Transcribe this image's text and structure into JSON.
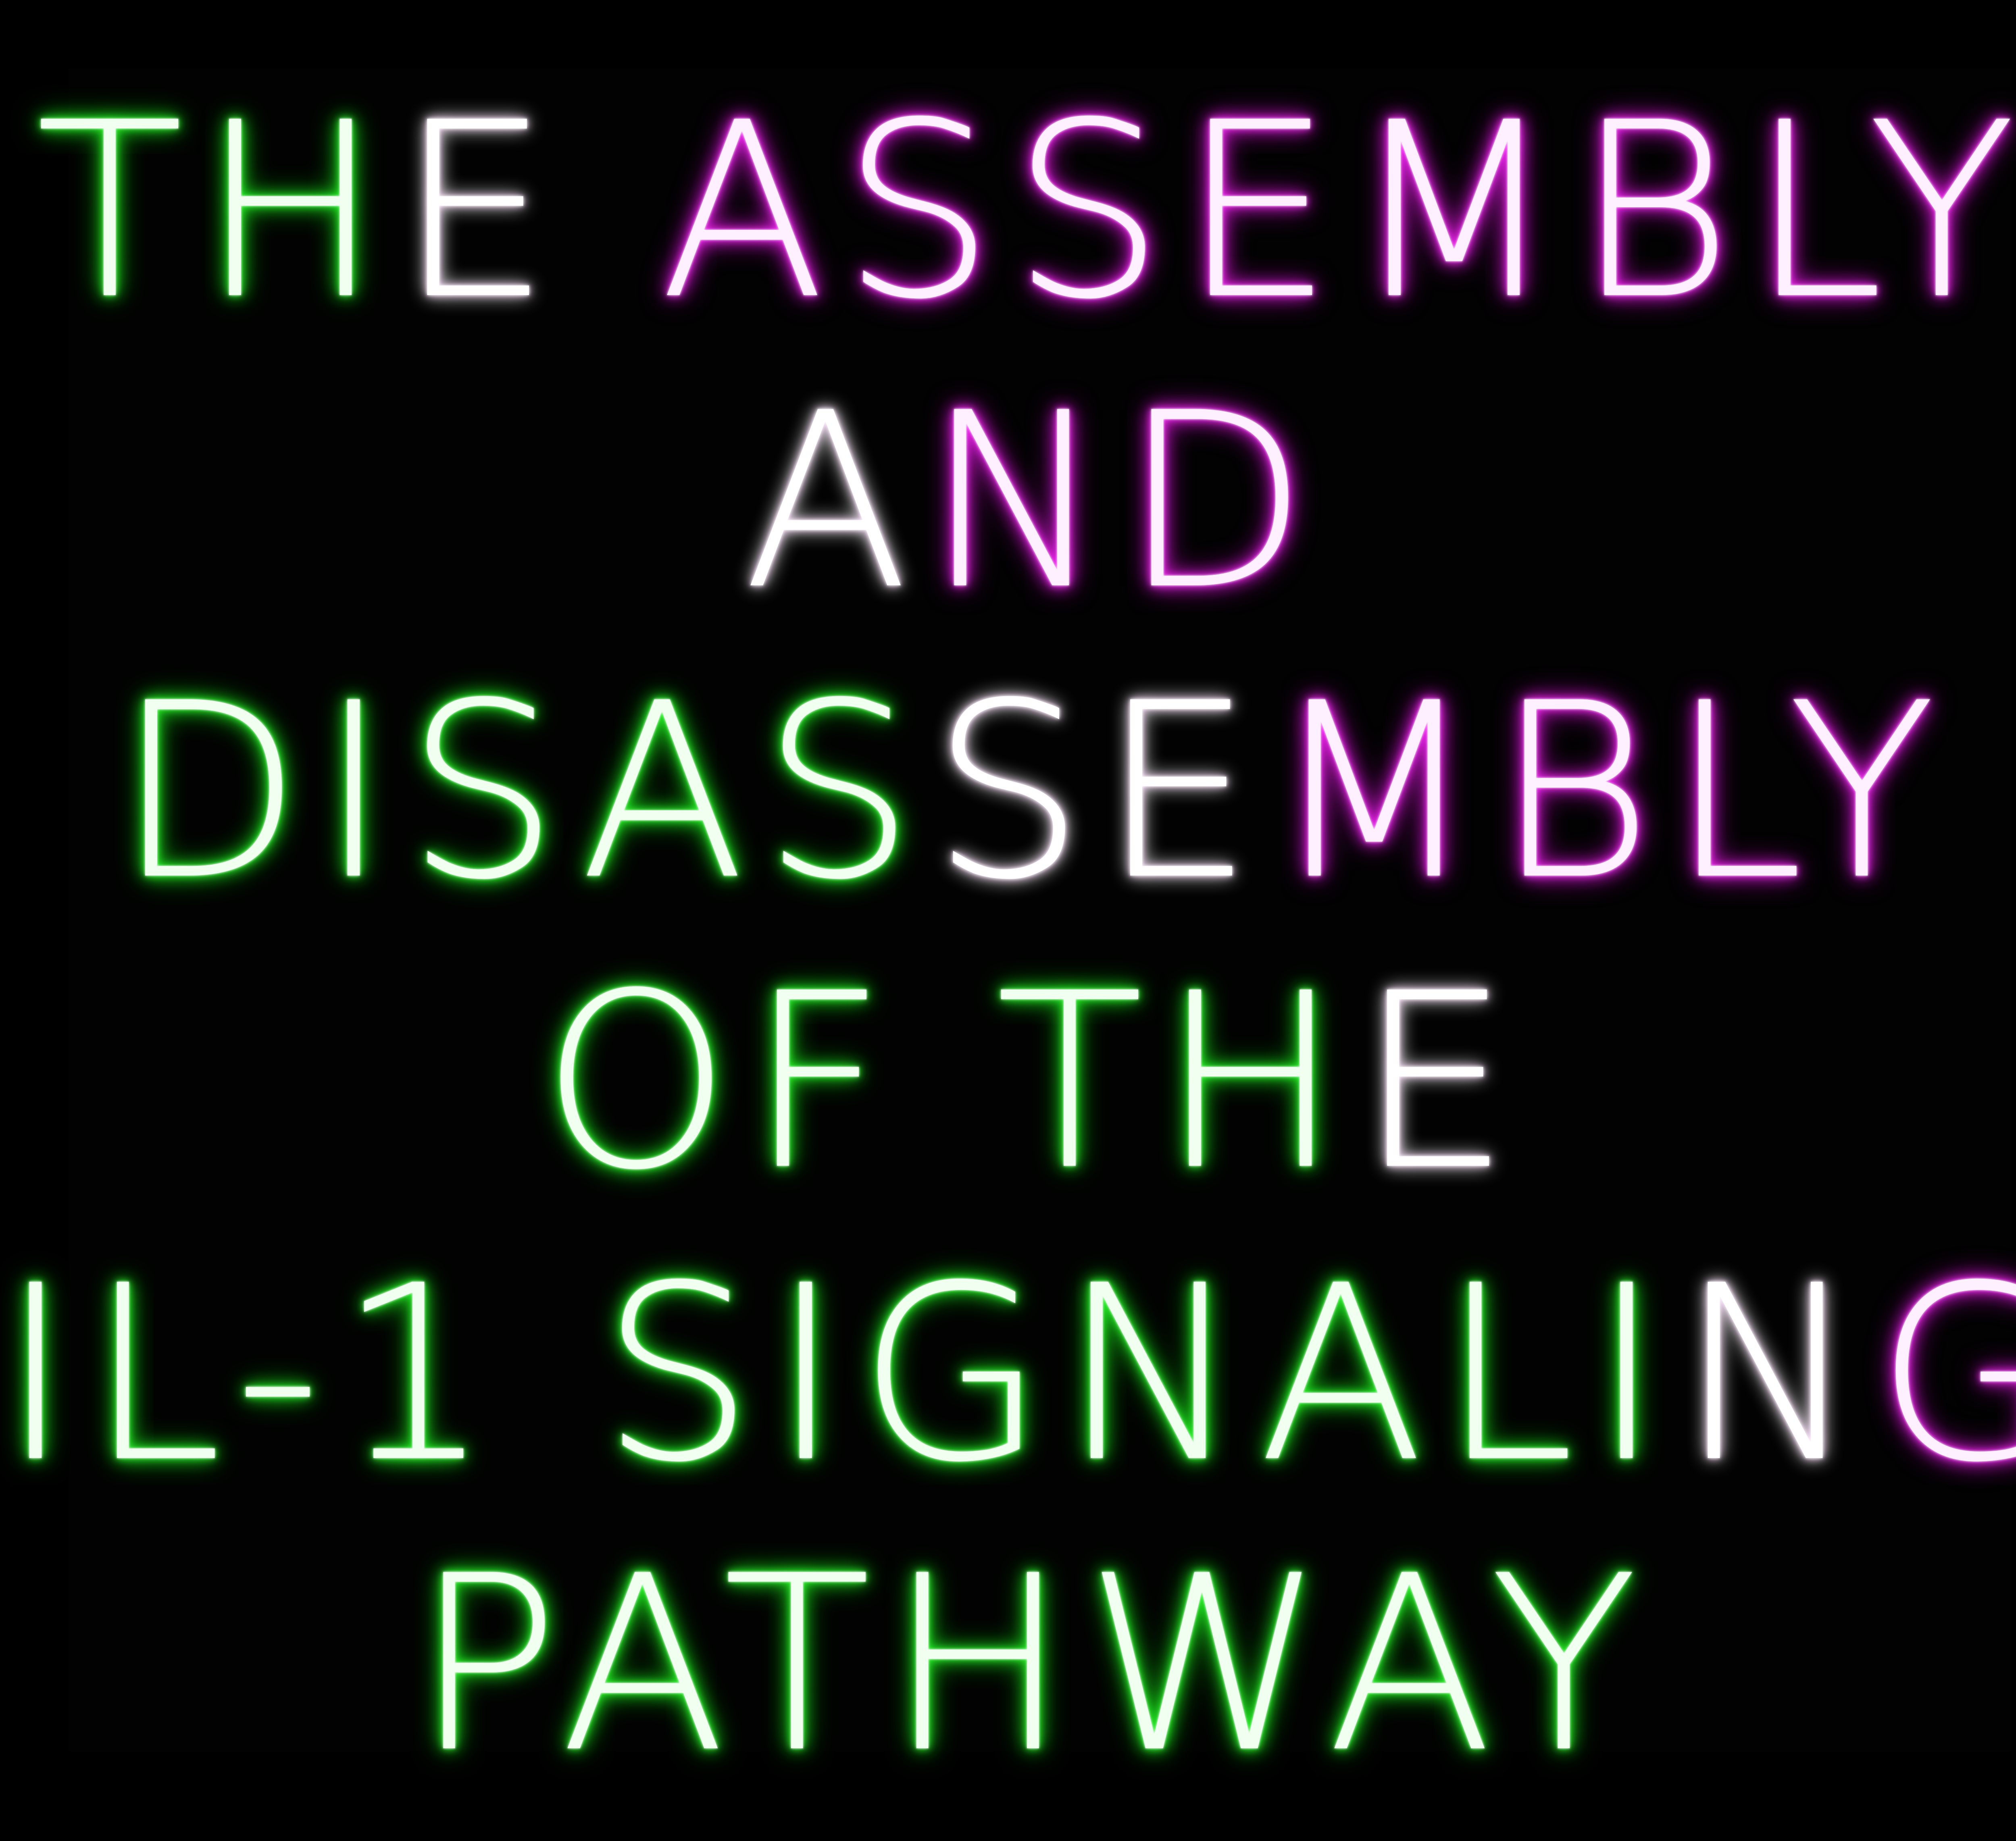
{
  "title_lines": [
    {
      "segments": [
        {
          "text": "TH",
          "style": "green"
        },
        {
          "text": "E",
          "style": "white"
        },
        {
          "text": " ASSEMBLY",
          "style": "magenta"
        }
      ]
    },
    {
      "segments": [
        {
          "text": "A",
          "style": "white"
        },
        {
          "text": "ND",
          "style": "magenta"
        }
      ]
    },
    {
      "segments": [
        {
          "text": "DISAS",
          "style": "green"
        },
        {
          "text": "SE",
          "style": "white"
        },
        {
          "text": "MBLY",
          "style": "magenta"
        }
      ]
    },
    {
      "segments": [
        {
          "text": "OF TH",
          "style": "green"
        },
        {
          "text": "E",
          "style": "white"
        }
      ]
    },
    {
      "segments": [
        {
          "text": "IL-1 SIGNALI",
          "style": "green"
        },
        {
          "text": "N",
          "style": "white"
        },
        {
          "text": "G",
          "style": "magenta"
        }
      ]
    },
    {
      "segments": [
        {
          "text": "PATHWAY",
          "style": "green"
        }
      ]
    }
  ],
  "colors": {
    "background": "#000000",
    "green_glow": "#33ff33",
    "magenta_glow": "#ff33ff",
    "white_core": "#ffffff"
  }
}
